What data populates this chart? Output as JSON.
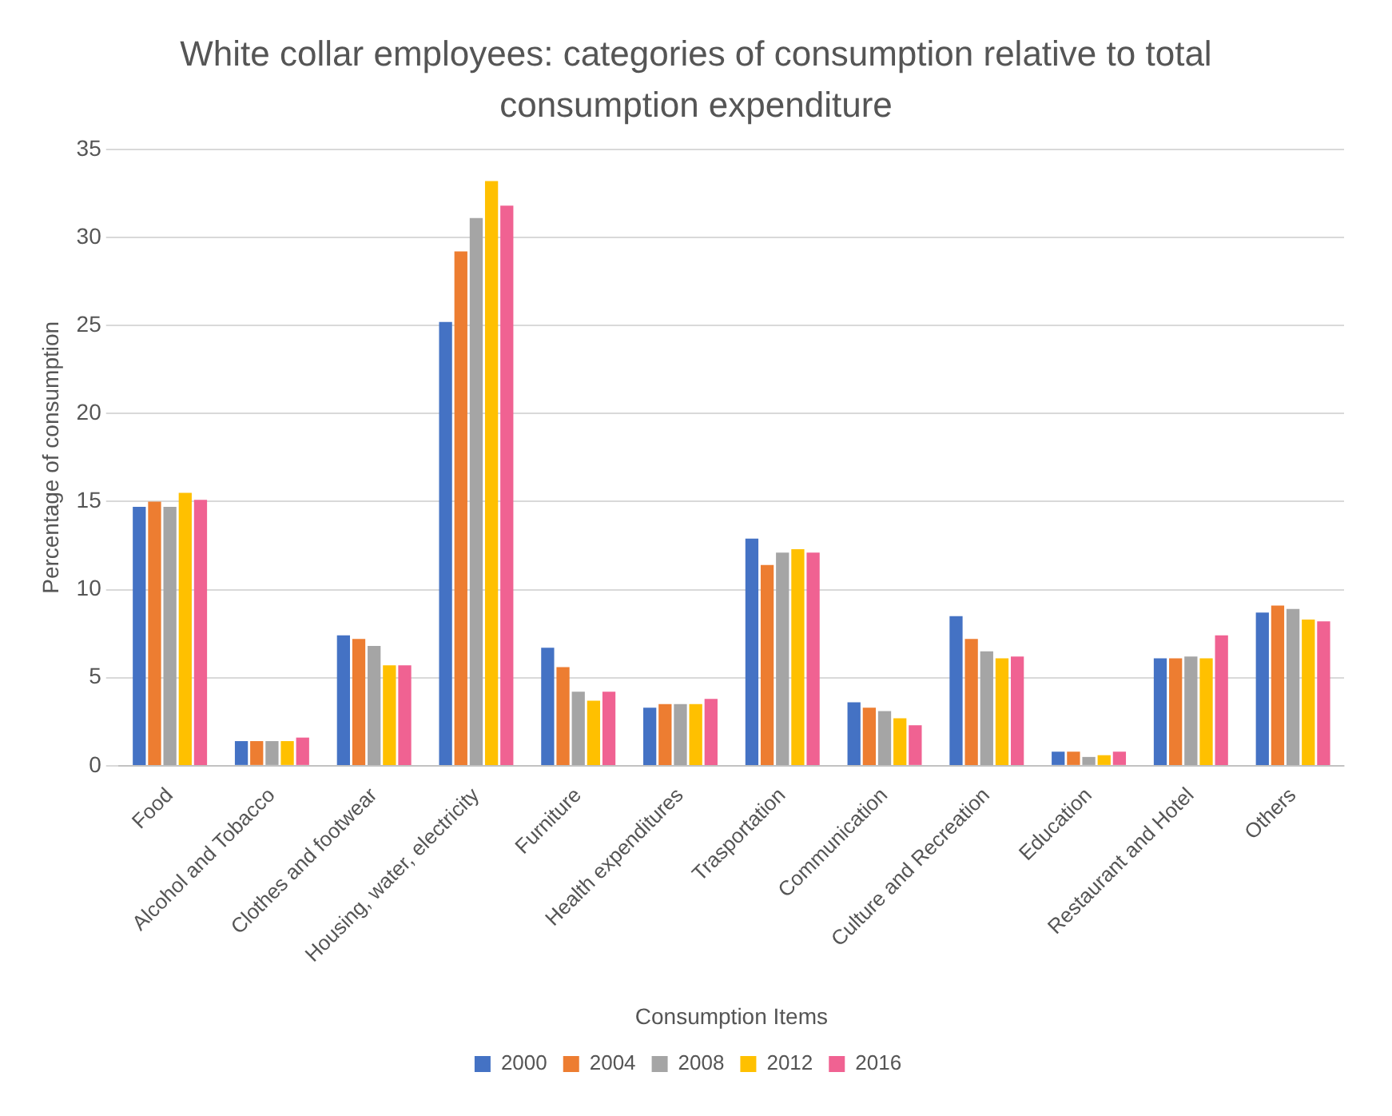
{
  "chart_data": {
    "type": "bar",
    "title": "White collar employees: categories of consumption relative to total consumption expenditure",
    "xlabel": "Consumption Items",
    "ylabel": "Percentage of consumption",
    "categories": [
      "Food",
      "Alcohol and Tobacco",
      "Clothes and footwear",
      "Housing, water, electricity",
      "Furniture",
      "Health expenditures",
      "Trasportation",
      "Communication",
      "Culture and Recreation",
      "Education",
      "Restaurant and Hotel",
      "Others"
    ],
    "series": [
      {
        "name": "2000",
        "color": "#4472c4",
        "values": [
          14.7,
          1.4,
          7.4,
          25.2,
          6.7,
          3.3,
          12.9,
          3.6,
          8.5,
          0.8,
          6.1,
          8.7
        ]
      },
      {
        "name": "2004",
        "color": "#ed7d31",
        "values": [
          15.0,
          1.4,
          7.2,
          29.2,
          5.6,
          3.5,
          11.4,
          3.3,
          7.2,
          0.8,
          6.1,
          9.1
        ]
      },
      {
        "name": "2008",
        "color": "#a5a5a5",
        "values": [
          14.7,
          1.4,
          6.8,
          31.1,
          4.2,
          3.5,
          12.1,
          3.1,
          6.5,
          0.5,
          6.2,
          8.9
        ]
      },
      {
        "name": "2012",
        "color": "#ffc000",
        "values": [
          15.5,
          1.4,
          5.7,
          33.2,
          3.7,
          3.5,
          12.3,
          2.7,
          6.1,
          0.6,
          6.1,
          8.3
        ]
      },
      {
        "name": "2016",
        "color": "#f06292",
        "values": [
          15.1,
          1.6,
          5.7,
          31.8,
          4.2,
          3.8,
          12.1,
          2.3,
          6.2,
          0.8,
          7.4,
          8.2
        ]
      }
    ],
    "ylim": [
      0,
      35
    ],
    "yticks": [
      0,
      5,
      10,
      15,
      20,
      25,
      30,
      35
    ],
    "grid": "y",
    "legend": "bottom"
  }
}
